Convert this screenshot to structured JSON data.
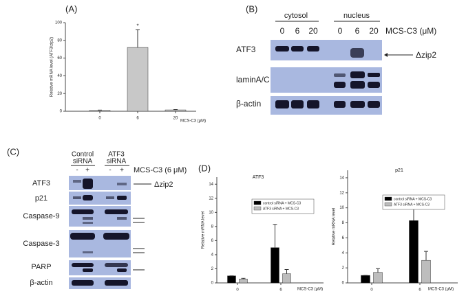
{
  "chart_data": [
    {
      "type": "bar",
      "panel_label": "(A)",
      "y_label": "Relative mRNA level (ATF3/zip2)",
      "x_label": "MCS-C3 (μM)",
      "categories": [
        "0",
        "6",
        "20"
      ],
      "series": [
        {
          "color": "#c8c8c8",
          "values": [
            1,
            72,
            1.5
          ],
          "errors": [
            0.3,
            20,
            0.4
          ]
        }
      ],
      "ylim": [
        0,
        100
      ],
      "yticks": [
        0,
        20,
        40,
        60,
        80,
        100
      ],
      "annotations": [
        {
          "text": "*",
          "category": "6"
        }
      ]
    },
    {
      "type": "bar",
      "panel_label": "(D)",
      "title": "ATF3",
      "y_label": "Relative mRNA level",
      "x_label": "MCS-C3 (μM)",
      "categories": [
        "0",
        "6"
      ],
      "series": [
        {
          "name": "control siRNA + MCS-C3",
          "color": "#000000",
          "values": [
            1,
            5
          ],
          "errors": [
            0,
            3.3
          ]
        },
        {
          "name": "ATF3 siRNA + MCS-C3",
          "color": "#bdbdbd",
          "values": [
            0.55,
            1.3
          ],
          "errors": [
            0.1,
            0.6
          ]
        }
      ],
      "ylim": [
        0,
        15
      ],
      "yticks": [
        0,
        2,
        4,
        6,
        8,
        10,
        12,
        14
      ],
      "legend": true
    },
    {
      "type": "bar",
      "title": "p21",
      "y_label": "Relative mRNA level",
      "x_label": "MCS-C3 (μM)",
      "categories": [
        "0",
        "6"
      ],
      "series": [
        {
          "name": "control siRNA + MCS-C3",
          "color": "#000000",
          "values": [
            1,
            8.3
          ],
          "errors": [
            0,
            2.6
          ]
        },
        {
          "name": "ATF3 siRNA + MCS-C3",
          "color": "#bdbdbd",
          "values": [
            1.4,
            3
          ],
          "errors": [
            0.5,
            1.2
          ]
        }
      ],
      "ylim": [
        0,
        15
      ],
      "yticks": [
        0,
        2,
        4,
        6,
        8,
        10,
        12,
        14
      ],
      "legend": true
    }
  ],
  "blot_b": {
    "panel_label": "(B)",
    "groups": [
      "cytosol",
      "nucleus"
    ],
    "doses": [
      "0",
      "6",
      "20",
      "0",
      "6",
      "20"
    ],
    "treatment": "MCS-C3 (μM)",
    "rows": [
      "ATF3",
      "laminA/C",
      "β-actin"
    ],
    "band_label": "Δzip2"
  },
  "blot_c": {
    "panel_label": "(C)",
    "groups": [
      [
        "Control",
        "siRNA"
      ],
      [
        "ATF3",
        "siRNA"
      ]
    ],
    "signs": [
      "-",
      "+",
      "-",
      "+"
    ],
    "treatment": "MCS-C3 (6 μM)",
    "rows": [
      "ATF3",
      "p21",
      "Caspase-9",
      "Caspase-3",
      "PARP",
      "β-actin"
    ],
    "band_label": "Δzip2"
  }
}
